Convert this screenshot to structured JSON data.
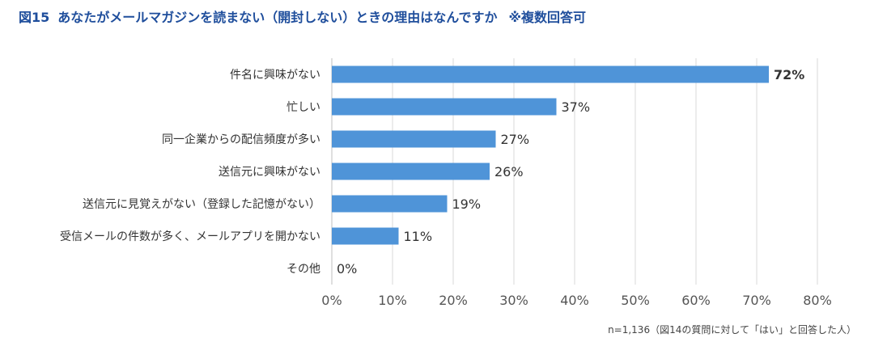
{
  "title": {
    "figure_no": "図15",
    "text": "あなたがメールマガジンを読まない（開封しない）ときの理由はなんですか",
    "note": "※複数回答可"
  },
  "footnote": "n=1,136（図14の質問に対して「はい」と回答した人）",
  "colors": {
    "bar": "#4f94d8",
    "title": "#1f4e9c",
    "grid": "#d9d9d9"
  },
  "chart_data": {
    "type": "bar",
    "orientation": "horizontal",
    "categories": [
      "件名に興味がない",
      "忙しい",
      "同一企業からの配信頻度が多い",
      "送信元に興味がない",
      "送信元に見覚えがない（登録した記憶がない）",
      "受信メールの件数が多く、メールアプリを開かない",
      "その他"
    ],
    "values": [
      72,
      37,
      27,
      26,
      19,
      11,
      0
    ],
    "value_labels": [
      "72%",
      "37%",
      "27%",
      "26%",
      "19%",
      "11%",
      "0%"
    ],
    "xlim": [
      0,
      80
    ],
    "x_ticks": [
      0,
      10,
      20,
      30,
      40,
      50,
      60,
      70,
      80
    ],
    "x_tick_labels": [
      "0%",
      "10%",
      "20%",
      "30%",
      "40%",
      "50%",
      "60%",
      "70%",
      "80%"
    ],
    "grid": true
  }
}
